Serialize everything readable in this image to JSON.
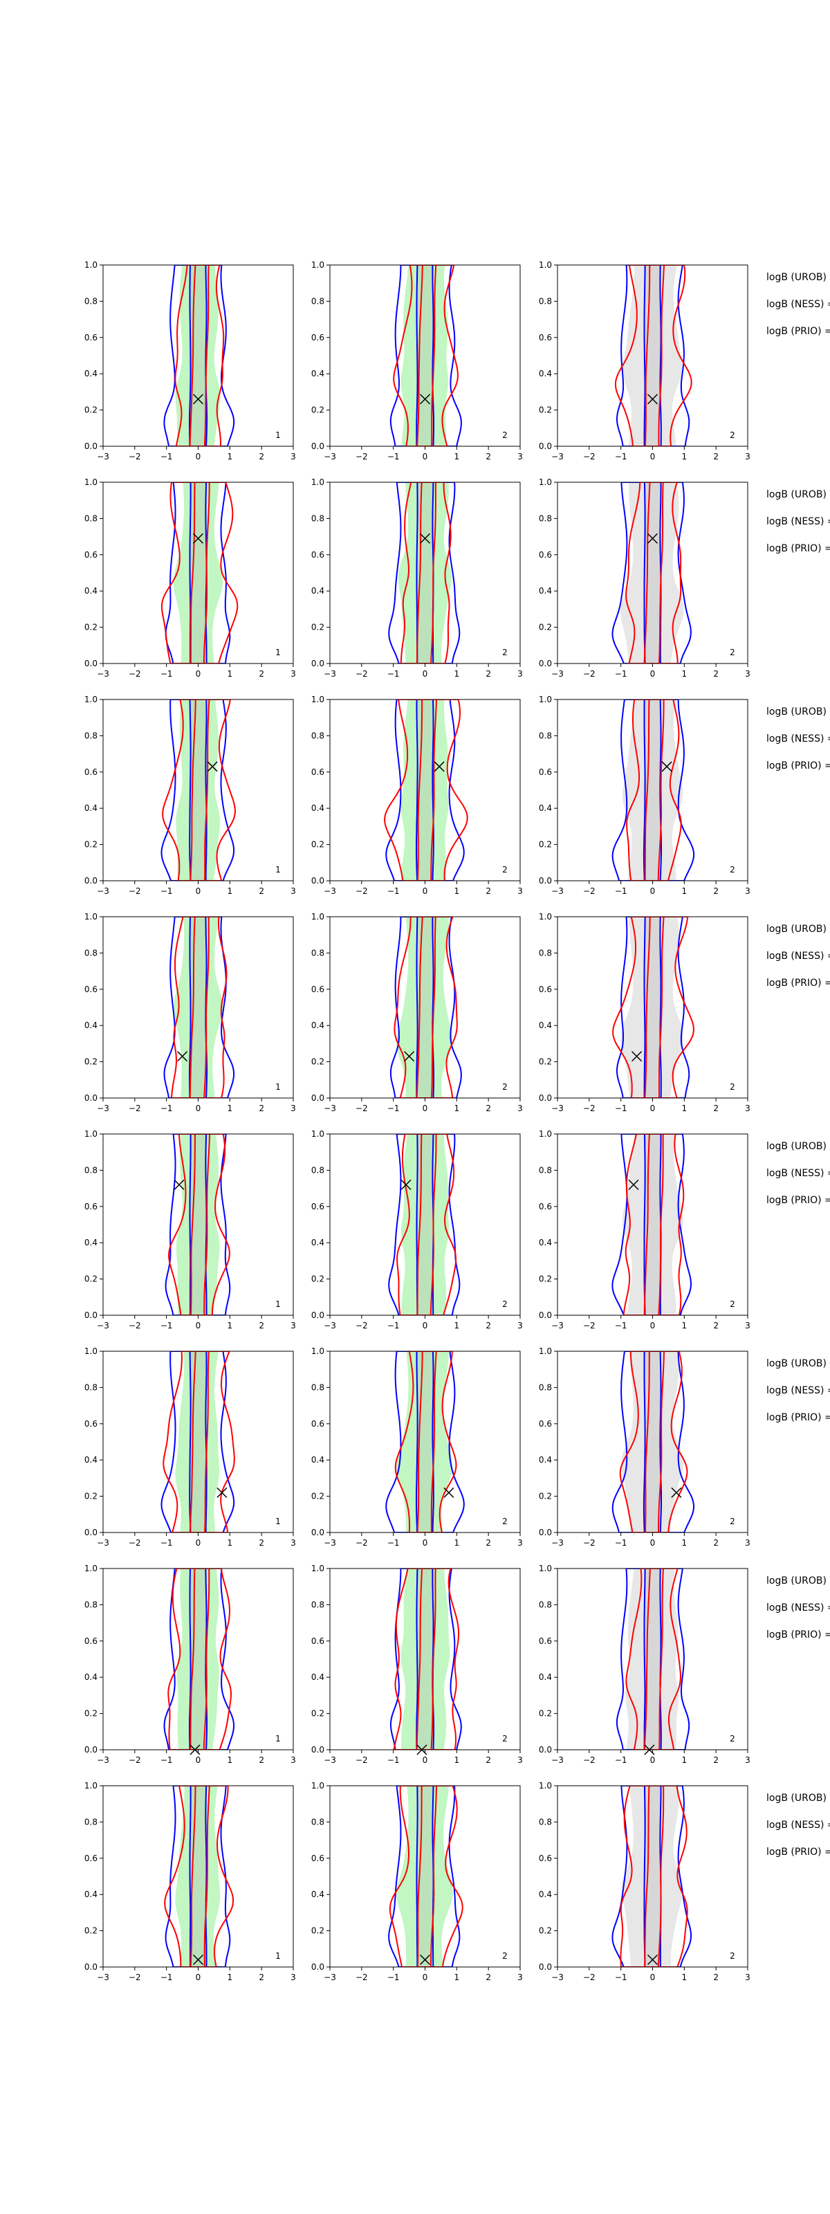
{
  "chart_data": {
    "type": "contour",
    "description_free": true,
    "layout": {
      "rows": 8,
      "cols": 3
    },
    "x_ticks": [
      "−3",
      "−2",
      "−1",
      "0",
      "1",
      "2",
      "3"
    ],
    "y_ticks": [
      "0.0",
      "0.2",
      "0.4",
      "0.6",
      "0.8",
      "1.0"
    ],
    "xlim": [
      -3,
      3
    ],
    "ylim": [
      0,
      1
    ],
    "colors": {
      "blue_contour": "#0000ff",
      "red_contour": "#ff0000",
      "green_fill": "#90ee90",
      "gray_fill": "#d3d3d3",
      "true_marker": "#000000"
    },
    "column_corner_labels": [
      "1",
      "2",
      "2"
    ],
    "rows": [
      {
        "marker": [
          0.0,
          0.26
        ],
        "side_labels": [
          "logB (UROB) =",
          "logB (NESS) =",
          "logB (PRIO) ="
        ]
      },
      {
        "marker": [
          0.0,
          0.69
        ],
        "side_labels": [
          "logB (UROB) =",
          "logB (NESS) =",
          "logB (PRIO) ="
        ]
      },
      {
        "marker": [
          0.45,
          0.63
        ],
        "side_labels": [
          "logB (UROB) =",
          "logB (NESS) =",
          "logB (PRIO) ="
        ]
      },
      {
        "marker": [
          -0.5,
          0.23
        ],
        "side_labels": [
          "logB (UROB) =",
          "logB (NESS) =",
          "logB (PRIO) ="
        ]
      },
      {
        "marker": [
          -0.6,
          0.72
        ],
        "side_labels": [
          "logB (UROB) =",
          "logB (NESS) =",
          "logB (PRIO) ="
        ]
      },
      {
        "marker": [
          0.75,
          0.22
        ],
        "side_labels": [
          "logB (UROB) =",
          "logB (NESS) =",
          "logB (PRIO) ="
        ]
      },
      {
        "marker": [
          -0.1,
          0.0
        ],
        "side_labels": [
          "logB (UROB) =",
          "logB (NESS) =",
          "logB (PRIO) ="
        ]
      },
      {
        "marker": [
          0.0,
          0.04
        ],
        "side_labels": [
          "logB (UROB) =",
          "logB (NESS) =",
          "logB (PRIO) ="
        ]
      }
    ]
  }
}
